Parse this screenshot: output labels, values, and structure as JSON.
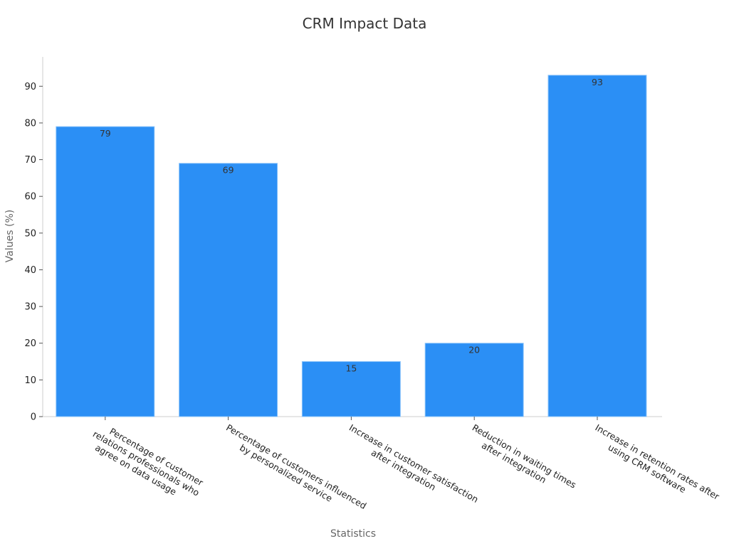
{
  "chart_data": {
    "type": "bar",
    "title": "CRM Impact Data",
    "xlabel": "Statistics",
    "ylabel": "Values (%)",
    "ylim": [
      0,
      98
    ],
    "yticks": [
      0,
      10,
      20,
      30,
      40,
      50,
      60,
      70,
      80,
      90
    ],
    "grid": false,
    "categories": [
      "Percentage of customer relations professionals who agree on data usage",
      "Percentage of customers influenced by personalized service",
      "Increase in customer satisfaction after integration",
      "Reduction in waiting times after integration",
      "Increase in retention rates after using CRM software"
    ],
    "category_lines": [
      [
        "Percentage of customer",
        "relations professionals who",
        "agree on data usage"
      ],
      [
        "Percentage of customers influenced",
        "by personalized service"
      ],
      [
        "Increase in customer satisfaction",
        "after integration"
      ],
      [
        "Reduction in waiting times",
        "after integration"
      ],
      [
        "Increase in retention rates after",
        "using CRM software"
      ]
    ],
    "values": [
      79,
      69,
      15,
      20,
      93
    ],
    "bar_color": "#2b8ff5",
    "bar_edge_color": "#8cc4fa",
    "axis_color": "#cccccc"
  }
}
